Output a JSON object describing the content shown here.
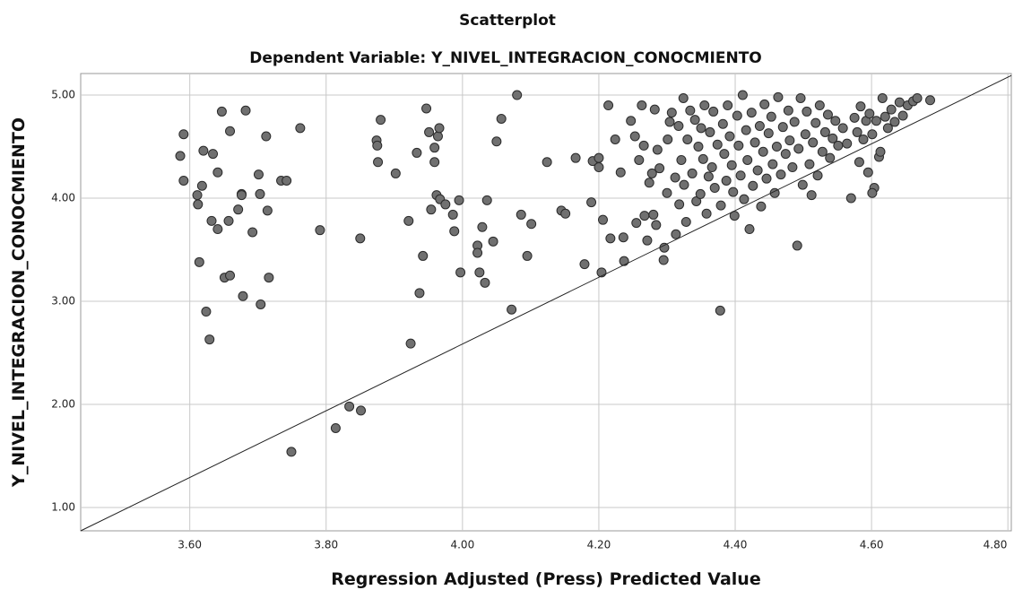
{
  "chart_data": {
    "type": "scatter",
    "title": "Scatterplot",
    "subtitle": "Dependent Variable: Y_NIVEL_INTEGRACION_CONOCMIENTO",
    "x_label": "Regression Adjusted (Press) Predicted Value",
    "y_label": "Y_NIVEL_INTEGRACION_CONOCMIENTO",
    "xlim": [
      3.44,
      4.805
    ],
    "ylim": [
      0.774,
      5.209
    ],
    "xticks": [
      {
        "value": 3.6,
        "label": "3.60"
      },
      {
        "value": 3.8,
        "label": "3.80"
      },
      {
        "value": 4.0,
        "label": "4.00"
      },
      {
        "value": 4.2,
        "label": "4.20"
      },
      {
        "value": 4.4,
        "label": "4.40"
      },
      {
        "value": 4.6,
        "label": "4.60"
      },
      {
        "value": 4.8,
        "label": "4.80"
      }
    ],
    "yticks": [
      {
        "value": 1,
        "label": "1.00"
      },
      {
        "value": 2,
        "label": "2.00"
      },
      {
        "value": 3,
        "label": "3.00"
      },
      {
        "value": 4,
        "label": "4.00"
      },
      {
        "value": 5,
        "label": "5.00"
      }
    ],
    "grid": true,
    "color": "#707070",
    "reference_line": {
      "x": [
        3.44,
        4.805
      ],
      "y": [
        0.774,
        5.19
      ]
    },
    "x": [
      3.586,
      3.591,
      3.591,
      3.611,
      3.612,
      3.618,
      3.62,
      3.614,
      3.624,
      3.629,
      3.632,
      3.634,
      3.641,
      3.641,
      3.647,
      3.651,
      3.657,
      3.659,
      3.659,
      3.671,
      3.676,
      3.678,
      3.682,
      3.676,
      3.692,
      3.701,
      3.703,
      3.704,
      3.712,
      3.714,
      3.716,
      3.734,
      3.742,
      3.762,
      3.749,
      3.791,
      3.814,
      3.834,
      3.85,
      3.851,
      3.874,
      3.875,
      3.88,
      3.876,
      3.902,
      3.921,
      3.924,
      3.933,
      3.937,
      3.942,
      3.947,
      3.951,
      3.954,
      3.959,
      3.959,
      3.962,
      3.964,
      3.966,
      3.967,
      3.975,
      3.986,
      3.988,
      3.995,
      3.997,
      4.022,
      4.022,
      4.025,
      4.029,
      4.033,
      4.036,
      4.045,
      4.05,
      4.057,
      4.072,
      4.08,
      4.086,
      4.095,
      4.101,
      4.124,
      4.145,
      4.151,
      4.166,
      4.179,
      4.189,
      4.191,
      4.2,
      4.2,
      4.204,
      4.206,
      4.214,
      4.217,
      4.224,
      4.232,
      4.236,
      4.237,
      4.247,
      4.253,
      4.255,
      4.259,
      4.263,
      4.266,
      4.267,
      4.271,
      4.274,
      4.278,
      4.28,
      4.282,
      4.284,
      4.286,
      4.289,
      4.295,
      4.296,
      4.3,
      4.301,
      4.304,
      4.307,
      4.312,
      4.313,
      4.317,
      4.318,
      4.321,
      4.324,
      4.325,
      4.328,
      4.33,
      4.334,
      4.337,
      4.341,
      4.343,
      4.346,
      4.349,
      4.35,
      4.353,
      4.355,
      4.358,
      4.361,
      4.363,
      4.366,
      4.368,
      4.37,
      4.374,
      4.378,
      4.379,
      4.382,
      4.384,
      4.387,
      4.389,
      4.392,
      4.395,
      4.397,
      4.399,
      4.403,
      4.405,
      4.408,
      4.411,
      4.413,
      4.416,
      4.418,
      4.421,
      4.424,
      4.426,
      4.429,
      4.433,
      4.436,
      4.438,
      4.441,
      4.443,
      4.446,
      4.449,
      4.453,
      4.455,
      4.458,
      4.461,
      4.463,
      4.467,
      4.47,
      4.474,
      4.478,
      4.48,
      4.484,
      4.487,
      4.491,
      4.493,
      4.496,
      4.499,
      4.503,
      4.505,
      4.509,
      4.512,
      4.514,
      4.518,
      4.521,
      4.524,
      4.528,
      4.532,
      4.536,
      4.539,
      4.543,
      4.547,
      4.551,
      4.558,
      4.564,
      4.57,
      4.575,
      4.579,
      4.582,
      4.584,
      4.588,
      4.592,
      4.595,
      4.597,
      4.601,
      4.604,
      4.601,
      4.607,
      4.611,
      4.613,
      4.616,
      4.62,
      4.624,
      4.629,
      4.634,
      4.641,
      4.646,
      4.653,
      4.661,
      4.667,
      4.686
    ],
    "y": [
      4.41,
      4.62,
      4.17,
      4.03,
      3.94,
      4.12,
      4.46,
      3.38,
      2.9,
      2.63,
      3.78,
      4.43,
      4.25,
      3.7,
      4.84,
      3.23,
      3.78,
      3.25,
      4.65,
      3.89,
      4.04,
      3.05,
      4.85,
      4.03,
      3.67,
      4.23,
      4.04,
      2.97,
      4.6,
      3.88,
      3.23,
      4.17,
      4.17,
      4.68,
      1.54,
      3.69,
      1.77,
      1.98,
      3.61,
      1.94,
      4.56,
      4.51,
      4.76,
      4.35,
      4.24,
      3.78,
      2.59,
      4.44,
      3.08,
      3.44,
      4.87,
      4.64,
      3.89,
      4.49,
      4.35,
      4.03,
      4.6,
      4.68,
      3.99,
      3.94,
      3.84,
      3.68,
      3.98,
      3.28,
      3.54,
      3.47,
      3.28,
      3.72,
      3.18,
      3.98,
      3.58,
      4.55,
      4.77,
      2.92,
      5.0,
      3.84,
      3.44,
      3.75,
      4.35,
      3.88,
      3.85,
      4.39,
      3.36,
      3.96,
      4.36,
      4.3,
      4.39,
      3.28,
      3.79,
      4.9,
      3.61,
      4.57,
      4.25,
      3.62,
      3.39,
      4.75,
      4.6,
      3.76,
      4.37,
      4.9,
      4.51,
      3.83,
      3.59,
      4.15,
      4.24,
      3.84,
      4.86,
      3.74,
      4.47,
      4.29,
      3.4,
      3.52,
      4.05,
      4.57,
      4.74,
      4.83,
      4.2,
      3.65,
      4.7,
      3.94,
      4.37,
      4.97,
      4.13,
      3.77,
      4.57,
      4.85,
      4.24,
      4.76,
      3.97,
      4.5,
      4.04,
      4.68,
      4.38,
      4.9,
      3.85,
      4.21,
      4.64,
      4.3,
      4.84,
      4.1,
      4.52,
      2.91,
      3.93,
      4.72,
      4.43,
      4.17,
      4.9,
      4.6,
      4.32,
      4.06,
      3.83,
      4.8,
      4.51,
      4.22,
      5.0,
      3.99,
      4.66,
      4.37,
      3.7,
      4.83,
      4.12,
      4.54,
      4.27,
      4.7,
      3.92,
      4.45,
      4.91,
      4.19,
      4.63,
      4.79,
      4.33,
      4.05,
      4.5,
      4.98,
      4.23,
      4.69,
      4.43,
      4.85,
      4.56,
      4.3,
      4.74,
      3.54,
      4.48,
      4.97,
      4.13,
      4.62,
      4.84,
      4.33,
      4.03,
      4.54,
      4.73,
      4.22,
      4.9,
      4.45,
      4.64,
      4.81,
      4.39,
      4.58,
      4.75,
      4.51,
      4.68,
      4.53,
      4.0,
      4.78,
      4.64,
      4.35,
      4.89,
      4.57,
      4.75,
      4.25,
      4.82,
      4.62,
      4.1,
      4.05,
      4.75,
      4.4,
      4.45,
      4.97,
      4.79,
      4.68,
      4.86,
      4.74,
      4.93,
      4.8,
      4.9,
      4.94,
      4.97,
      4.95
    ]
  }
}
